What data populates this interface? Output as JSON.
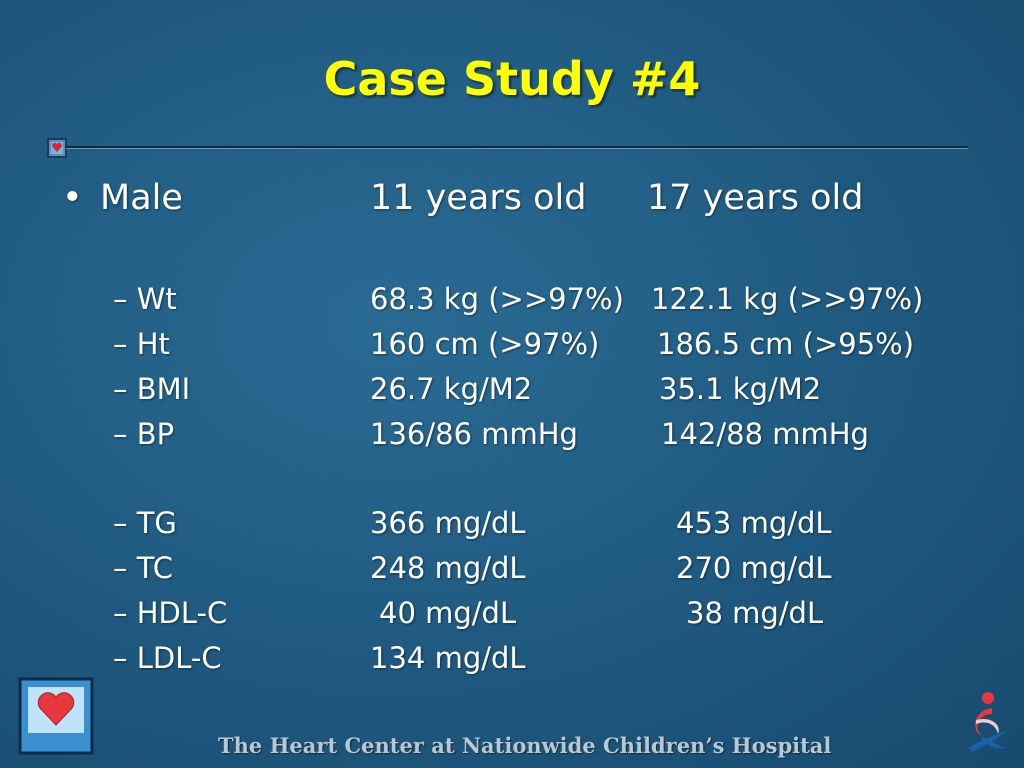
{
  "title": "Case Study #4",
  "header_row": {
    "bullet": "•",
    "label": "Male",
    "col1": "11 years old",
    "col2": "17 years old"
  },
  "rows": [
    {
      "label": "– Wt",
      "col1": "68.3 kg (>>97%)",
      "col2": "122.1 kg (>>97%)"
    },
    {
      "label": "– Ht",
      "col1": "160 cm (>97%)",
      "col2": "186.5 cm (>95%)"
    },
    {
      "label": "– BMI",
      "col1": "26.7 kg/M2",
      "col2": "35.1 kg/M2"
    },
    {
      "label": "– BP",
      "col1": "136/86 mmHg",
      "col2": "142/88 mmHg"
    },
    {
      "label": "– TG",
      "col1": "366 mg/dL",
      "col2": "453 mg/dL"
    },
    {
      "label": "– TC",
      "col1": "248 mg/dL",
      "col2": "270 mg/dL"
    },
    {
      "label": "– HDL-C",
      "col1": "40 mg/dL",
      "col2": "38 mg/dL"
    },
    {
      "label": "– LDL-C",
      "col1": "134 mg/dL",
      "col2": ""
    }
  ],
  "footer": "The Heart Center at Nationwide Children’s Hospital",
  "icons": {
    "left_logo": "heart-logo-icon",
    "right_logo": "nationwide-childrens-logo-icon",
    "rule": "heart-square-icon"
  },
  "colors": {
    "title": "#ffff00",
    "background": "#215c83",
    "text": "#ffffff",
    "heart": "#e8383d"
  }
}
